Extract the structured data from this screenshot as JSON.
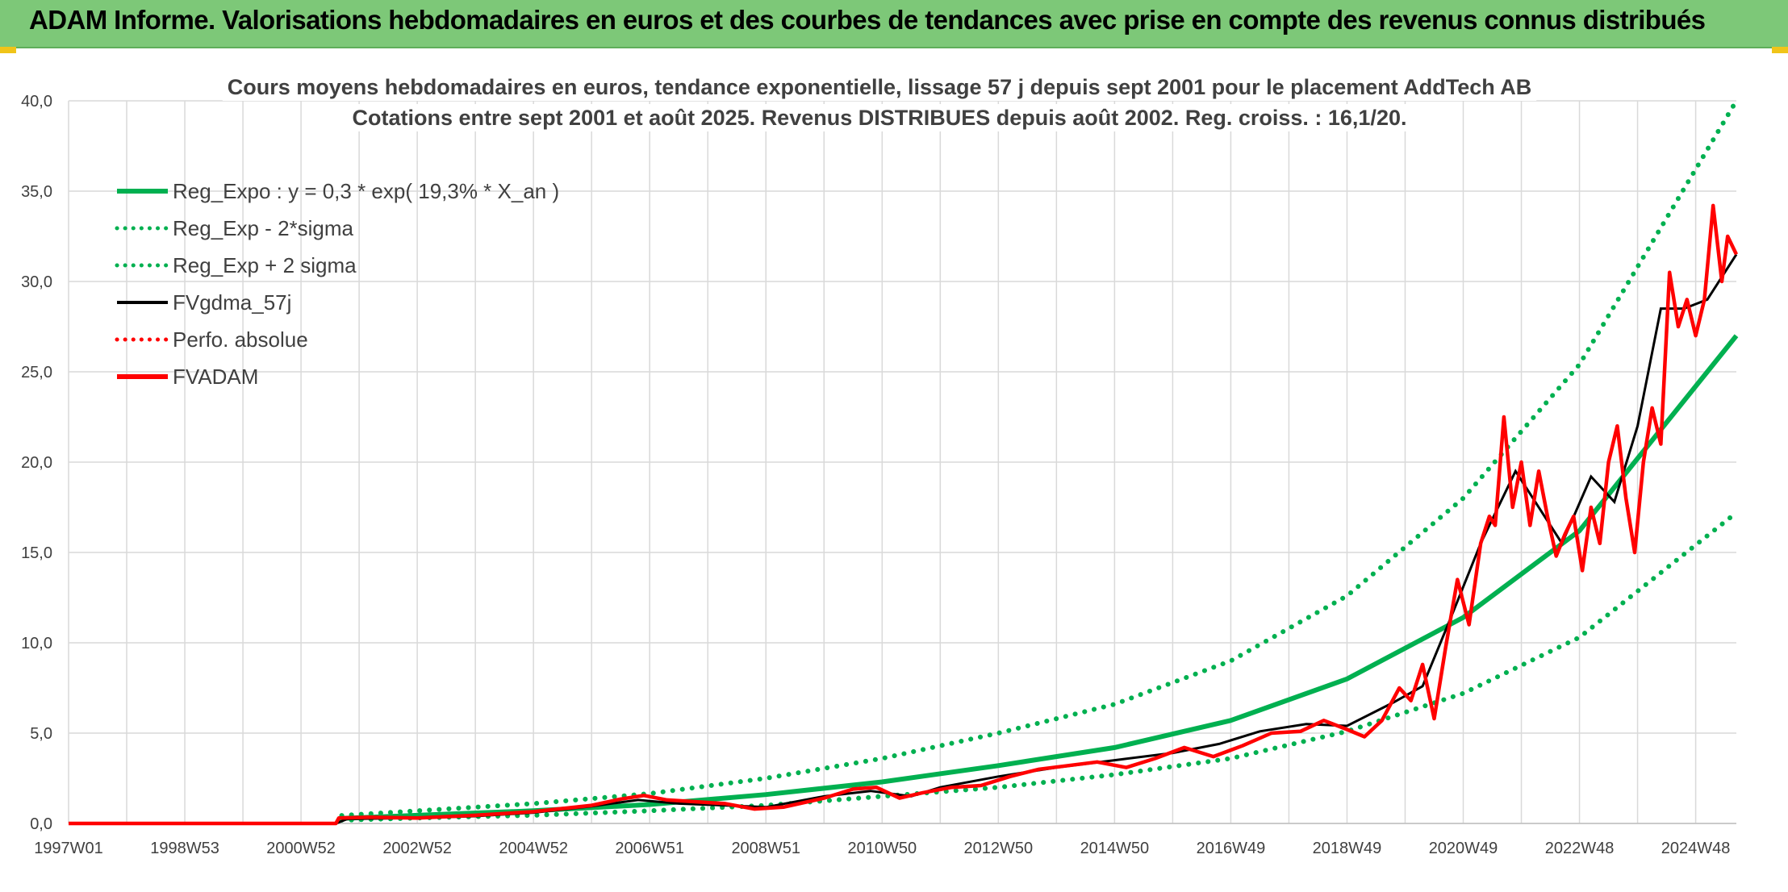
{
  "banner": {
    "title": "ADAM Informe. Valorisations hebdomadaires en euros et des courbes de tendances avec prise en compte des revenus connus distribués"
  },
  "colors": {
    "banner_bg": "#7dc878",
    "reg_expo": "#00b050",
    "fvgdma": "#000000",
    "fvadam": "#ff0000",
    "grid": "#d9d9d9"
  },
  "chart_data": {
    "type": "line",
    "title_lines": [
      "Cours moyens hebdomadaires en euros, tendance exponentielle, lissage 57 j depuis sept 2001 pour le placement AddTech AB",
      "Cotations entre sept 2001 et août 2025. Revenus DISTRIBUES depuis août 2002. Reg. croiss. : 16,1/20."
    ],
    "xlabel": "",
    "ylabel": "",
    "ylim": [
      0,
      40
    ],
    "y_ticks": [
      "0,0",
      "5,0",
      "10,0",
      "15,0",
      "20,0",
      "25,0",
      "30,0",
      "35,0",
      "40,0"
    ],
    "x_ticks": [
      "1997W01",
      "1998W53",
      "2000W52",
      "2002W52",
      "2004W52",
      "2006W51",
      "2008W51",
      "2010W50",
      "2012W50",
      "2014W50",
      "2016W49",
      "2018W49",
      "2020W49",
      "2022W48",
      "2024W48"
    ],
    "x_tick_years": [
      1997.0,
      1999.0,
      2001.0,
      2003.0,
      2005.0,
      2007.0,
      2009.0,
      2011.0,
      2013.0,
      2015.0,
      2017.0,
      2019.0,
      2021.0,
      2023.0,
      2025.0
    ],
    "xlim": [
      1997.0,
      2025.7
    ],
    "grid": true,
    "legend_position": "top-left",
    "legend": [
      {
        "label": "Reg_Expo : y = 0,3 * exp( 19,3% *  X_an )",
        "color": "#00b050",
        "style": "solid"
      },
      {
        "label": "Reg_Exp - 2*sigma",
        "color": "#00b050",
        "style": "dotted"
      },
      {
        "label": "Reg_Exp + 2 sigma",
        "color": "#00b050",
        "style": "dotted"
      },
      {
        "label": "FVgdma_57j",
        "color": "#000000",
        "style": "solid"
      },
      {
        "label": "Perfo. absolue",
        "color": "#ff0000",
        "style": "dotted"
      },
      {
        "label": "FVADAM",
        "color": "#ff0000",
        "style": "solid"
      }
    ],
    "series": [
      {
        "name": "Reg_Expo : y = 0,3 * exp( 19,3% *  X_an )",
        "color": "#00b050",
        "style": "solid",
        "x": [
          2001.7,
          2003,
          2005,
          2007,
          2009,
          2011,
          2013,
          2015,
          2017,
          2019,
          2021,
          2023,
          2025.7
        ],
        "y": [
          0.28,
          0.45,
          0.7,
          1.05,
          1.6,
          2.3,
          3.2,
          4.2,
          5.7,
          8.0,
          11.4,
          16.2,
          27.0
        ]
      },
      {
        "name": "Reg_Exp - 2*sigma",
        "color": "#00b050",
        "style": "dotted",
        "x": [
          2001.7,
          2003,
          2005,
          2007,
          2009,
          2011,
          2013,
          2015,
          2017,
          2019,
          2021,
          2023,
          2025.7
        ],
        "y": [
          0.18,
          0.3,
          0.45,
          0.7,
          1.0,
          1.5,
          2.0,
          2.7,
          3.6,
          5.1,
          7.2,
          10.3,
          17.2
        ]
      },
      {
        "name": "Reg_Exp + 2 sigma",
        "color": "#00b050",
        "style": "dotted",
        "x": [
          2001.7,
          2003,
          2005,
          2007,
          2009,
          2011,
          2013,
          2015,
          2017,
          2019,
          2021,
          2023,
          2025.7
        ],
        "y": [
          0.44,
          0.7,
          1.1,
          1.65,
          2.5,
          3.6,
          5.0,
          6.6,
          9.0,
          12.6,
          18.0,
          25.4,
          40.0
        ]
      },
      {
        "name": "FVgdma_57j",
        "color": "#000000",
        "style": "solid",
        "x": [
          1997.0,
          2001.6,
          2001.8,
          2003,
          2004,
          2005,
          2006,
          2006.8,
          2007.5,
          2008.3,
          2009,
          2010,
          2010.8,
          2011.5,
          2012,
          2013,
          2014,
          2015,
          2016,
          2016.8,
          2017.5,
          2018.3,
          2019,
          2019.8,
          2020.3,
          2020.8,
          2021.3,
          2021.9,
          2022.3,
          2022.7,
          2023.2,
          2023.6,
          2024.0,
          2024.4,
          2024.8,
          2025.2,
          2025.7
        ],
        "y": [
          0,
          0,
          0.25,
          0.3,
          0.4,
          0.6,
          0.95,
          1.3,
          1.1,
          1.0,
          0.9,
          1.5,
          1.8,
          1.5,
          2.0,
          2.6,
          3.1,
          3.5,
          3.9,
          4.4,
          5.1,
          5.5,
          5.4,
          6.7,
          7.6,
          11.5,
          15.5,
          19.5,
          17.5,
          15.5,
          19.2,
          17.8,
          22.0,
          28.5,
          28.5,
          29.0,
          31.5
        ]
      },
      {
        "name": "FVADAM",
        "color": "#ff0000",
        "style": "solid",
        "x": [
          1997.0,
          2001.6,
          2001.65,
          2002.2,
          2003,
          2004,
          2005,
          2006,
          2006.5,
          2006.9,
          2007.3,
          2007.8,
          2008.3,
          2008.8,
          2009.3,
          2010,
          2010.5,
          2010.9,
          2011.3,
          2011.7,
          2012.2,
          2012.7,
          2013.2,
          2013.7,
          2014.2,
          2014.7,
          2015.2,
          2015.7,
          2016.2,
          2016.7,
          2017.2,
          2017.7,
          2018.2,
          2018.6,
          2019.0,
          2019.3,
          2019.6,
          2019.9,
          2020.1,
          2020.3,
          2020.5,
          2020.7,
          2020.9,
          2021.1,
          2021.3,
          2021.45,
          2021.55,
          2021.7,
          2021.85,
          2022.0,
          2022.15,
          2022.3,
          2022.45,
          2022.6,
          2022.75,
          2022.9,
          2023.05,
          2023.2,
          2023.35,
          2023.5,
          2023.65,
          2023.8,
          2023.95,
          2024.1,
          2024.25,
          2024.4,
          2024.55,
          2024.7,
          2024.85,
          2025.0,
          2025.15,
          2025.3,
          2025.45,
          2025.55,
          2025.7
        ],
        "y": [
          0,
          0,
          0.3,
          0.35,
          0.3,
          0.45,
          0.65,
          1.0,
          1.35,
          1.55,
          1.3,
          1.2,
          1.1,
          0.8,
          0.9,
          1.4,
          1.9,
          2.0,
          1.4,
          1.7,
          2.0,
          2.1,
          2.6,
          3.0,
          3.2,
          3.4,
          3.1,
          3.6,
          4.2,
          3.7,
          4.3,
          5.0,
          5.1,
          5.7,
          5.2,
          4.8,
          5.7,
          7.5,
          6.8,
          8.8,
          5.8,
          9.8,
          13.5,
          11.0,
          15.5,
          17.0,
          16.5,
          22.5,
          17.5,
          20.0,
          16.5,
          19.5,
          17.0,
          14.8,
          16.0,
          17.0,
          14.0,
          17.5,
          15.5,
          20.0,
          22.0,
          18.0,
          15.0,
          20.0,
          23.0,
          21.0,
          30.5,
          27.5,
          29.0,
          27.0,
          29.0,
          34.2,
          30.0,
          32.5,
          31.5
        ]
      }
    ]
  }
}
